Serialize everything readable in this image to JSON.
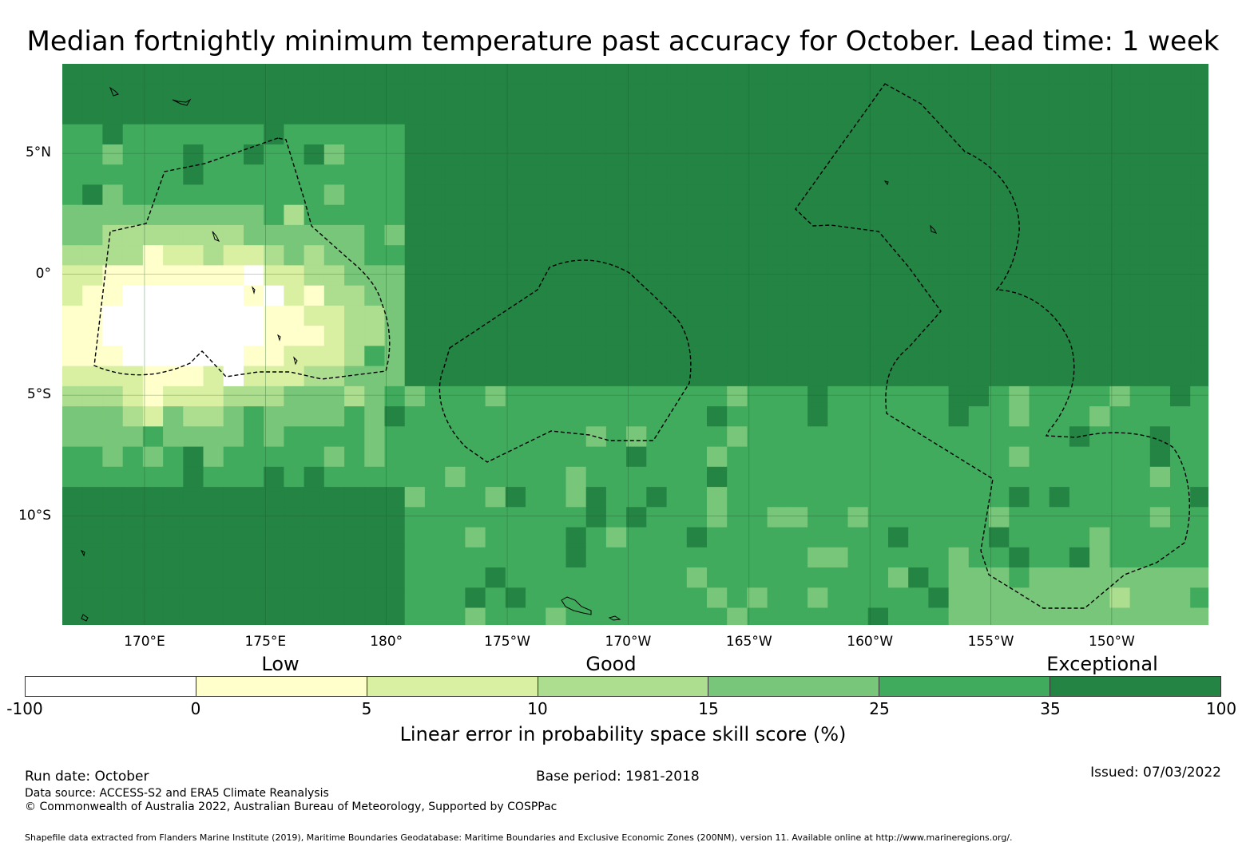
{
  "title": "Median fortnightly minimum temperature past accuracy for October. Lead time: 1 week",
  "map": {
    "lat_labels": [
      "5°N",
      "0°",
      "5°S",
      "10°S"
    ],
    "lon_labels": [
      "170°E",
      "175°E",
      "180°",
      "175°W",
      "170°W",
      "165°W",
      "160°W",
      "155°W",
      "150°W"
    ],
    "extent": {
      "lon_min": 166.6,
      "lon_max": 214.0,
      "lat_min": -14.5,
      "lat_max": 8.7
    },
    "grid_step_deg": 0.833,
    "category_colors": [
      "#ffffff",
      "#ffffcc",
      "#d9f0a3",
      "#addd8e",
      "#78c679",
      "#41ab5d",
      "#238443"
    ],
    "category_labels": [
      "Low",
      "Good",
      "Exceptional"
    ]
  },
  "colorbar": {
    "ticks": [
      "-100",
      "0",
      "5",
      "10",
      "15",
      "25",
      "35",
      "100"
    ],
    "colors": [
      "#ffffff",
      "#ffffcc",
      "#d9f0a3",
      "#addd8e",
      "#78c679",
      "#41ab5d",
      "#238443"
    ],
    "label": "Linear error in probability space skill score (%)"
  },
  "footer": {
    "run_date": "Run date: October",
    "base_period": "Base period: 1981-2018",
    "issued": "Issued: 07/03/2022",
    "data_source": "Data source: ACCESS-S2 and ERA5 Climate Reanalysis",
    "copyright": "© Commonwealth of Australia 2022, Australian Bureau of Meteorology, Supported by COSPPac",
    "shapefile": "Shapefile data extracted from Flanders Marine Institute (2019), Maritime Boundaries Geodatabase: Maritime Boundaries and Exclusive Economic Zones (200NM), version 11. Available online at http://www.marineregions.org/."
  }
}
